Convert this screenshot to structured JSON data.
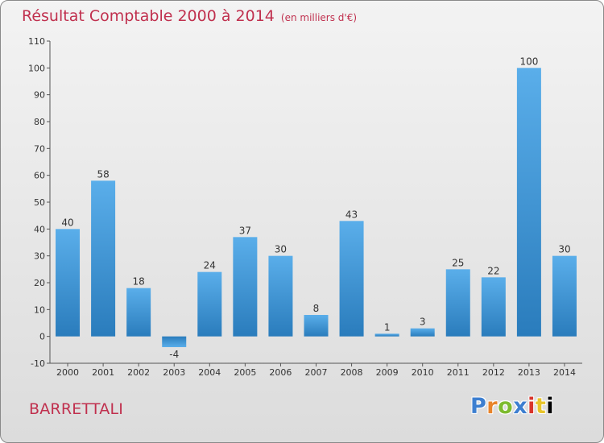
{
  "title": "Résultat Comptable 2000 à 2014",
  "subtitle": "(en milliers d'€)",
  "commune": "BARRETTALI",
  "logo_text": "Proxiti",
  "colors": {
    "title": "#c0304e",
    "bar_light": "#5aaeea",
    "bar_dark": "#2a7cbc",
    "background_top": "#f3f3f3",
    "background_bottom": "#dcdcdc"
  },
  "chart_data": {
    "type": "bar",
    "title": "Résultat Comptable 2000 à 2014",
    "subtitle": "(en milliers d'€)",
    "xlabel": "",
    "ylabel": "",
    "categories": [
      "2000",
      "2001",
      "2002",
      "2003",
      "2004",
      "2005",
      "2006",
      "2007",
      "2008",
      "2009",
      "2010",
      "2011",
      "2012",
      "2013",
      "2014"
    ],
    "values": [
      40,
      58,
      18,
      -4,
      24,
      37,
      30,
      8,
      43,
      1,
      3,
      25,
      22,
      100,
      30
    ],
    "ylim": [
      -10,
      110
    ],
    "yticks": [
      -10,
      0,
      10,
      20,
      30,
      40,
      50,
      60,
      70,
      80,
      90,
      100,
      110
    ],
    "grid": false,
    "data_labels": true,
    "legend": "none"
  }
}
